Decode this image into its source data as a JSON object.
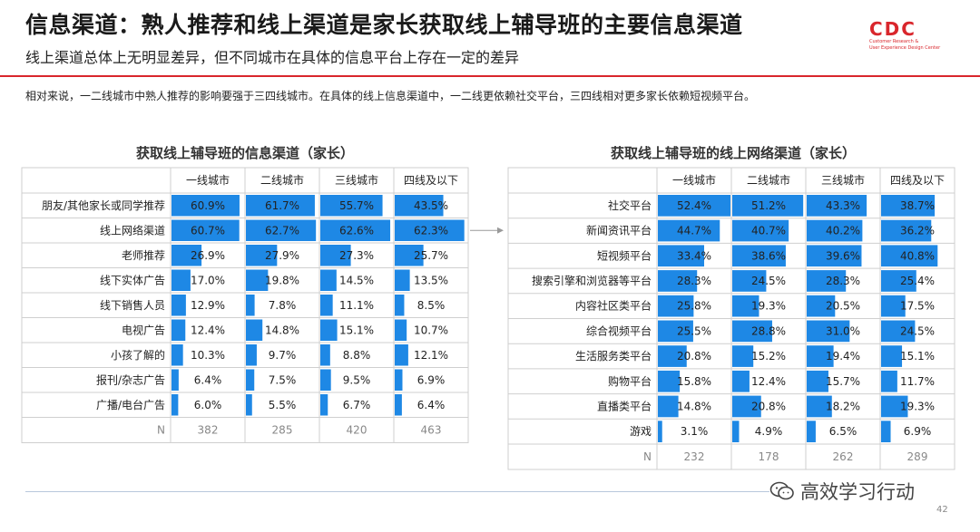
{
  "header": {
    "title": "信息渠道：熟人推荐和线上渠道是家长获取线上辅导班的主要信息渠道",
    "subtitle": "线上渠道总体上无明显差异，但不同城市在具体的信息平台上存在一定的差异",
    "description": "相对来说，一二线城市中熟人推荐的影响要强于三四线城市。在具体的线上信息渠道中，一二线更依赖社交平台，三四线相对更多家长依赖短视频平台。",
    "logo_text": "CDC",
    "logo_sub1": "Customer Research &",
    "logo_sub2": "User Experience Design Center"
  },
  "colors": {
    "bar": "#1e88e5",
    "grid": "#cfcfcf",
    "accent": "#d9262c"
  },
  "footer": {
    "watermark": "高效学习行动",
    "page_number": "42"
  },
  "chart_data": [
    {
      "type": "table",
      "title": "获取线上辅导班的信息渠道（家长）",
      "columns": [
        "一线城市",
        "二线城市",
        "三线城市",
        "四线及以下"
      ],
      "rows": [
        "朋友/其他家长或同学推荐",
        "线上网络渠道",
        "老师推荐",
        "线下实体广告",
        "线下销售人员",
        "电视广告",
        "小孩了解的",
        "报刊/杂志广告",
        "广播/电台广告"
      ],
      "values": [
        [
          60.9,
          61.7,
          55.7,
          43.5
        ],
        [
          60.7,
          62.7,
          62.6,
          62.3
        ],
        [
          26.9,
          27.9,
          27.3,
          25.7
        ],
        [
          17.0,
          19.8,
          14.5,
          13.5
        ],
        [
          12.9,
          7.8,
          11.1,
          8.5
        ],
        [
          12.4,
          14.8,
          15.1,
          10.7
        ],
        [
          10.3,
          9.7,
          8.8,
          12.1
        ],
        [
          6.4,
          7.5,
          9.5,
          6.9
        ],
        [
          6.0,
          5.5,
          6.7,
          6.4
        ]
      ],
      "labels": [
        [
          "60.9%",
          "61.7%",
          "55.7%",
          "43.5%"
        ],
        [
          "60.7%",
          "62.7%",
          "62.6%",
          "62.3%"
        ],
        [
          "26.9%",
          "27.9%",
          "27.3%",
          "25.7%"
        ],
        [
          "17.0%",
          "19.8%",
          "14.5%",
          "13.5%"
        ],
        [
          "12.9%",
          "7.8%",
          "11.1%",
          "8.5%"
        ],
        [
          "12.4%",
          "14.8%",
          "15.1%",
          "10.7%"
        ],
        [
          "10.3%",
          "9.7%",
          "8.8%",
          "12.1%"
        ],
        [
          "6.4%",
          "7.5%",
          "9.5%",
          "6.9%"
        ],
        [
          "6.0%",
          "5.5%",
          "6.7%",
          "6.4%"
        ]
      ],
      "n_label": "N",
      "n": [
        382,
        285,
        420,
        463
      ],
      "max": 65
    },
    {
      "type": "table",
      "title": "获取线上辅导班的线上网络渠道（家长）",
      "columns": [
        "一线城市",
        "二线城市",
        "三线城市",
        "四线及以下"
      ],
      "rows": [
        "社交平台",
        "新闻资讯平台",
        "短视频平台",
        "搜索引擎和浏览器等平台",
        "内容社区类平台",
        "综合视频平台",
        "生活服务类平台",
        "购物平台",
        "直播类平台",
        "游戏"
      ],
      "values": [
        [
          52.4,
          51.2,
          43.3,
          38.7
        ],
        [
          44.7,
          40.7,
          40.2,
          36.2
        ],
        [
          33.4,
          38.6,
          39.6,
          40.8
        ],
        [
          28.3,
          24.5,
          28.3,
          25.4
        ],
        [
          25.8,
          19.3,
          20.5,
          17.5
        ],
        [
          25.5,
          28.8,
          31.0,
          24.5
        ],
        [
          20.8,
          15.2,
          19.4,
          15.1
        ],
        [
          15.8,
          12.4,
          15.7,
          11.7
        ],
        [
          14.8,
          20.8,
          18.2,
          19.3
        ],
        [
          3.1,
          4.9,
          6.5,
          6.9
        ]
      ],
      "labels": [
        [
          "52.4%",
          "51.2%",
          "43.3%",
          "38.7%"
        ],
        [
          "44.7%",
          "40.7%",
          "40.2%",
          "36.2%"
        ],
        [
          "33.4%",
          "38.6%",
          "39.6%",
          "40.8%"
        ],
        [
          "28.3%",
          "24.5%",
          "28.3%",
          "25.4%"
        ],
        [
          "25.8%",
          "19.3%",
          "20.5%",
          "17.5%"
        ],
        [
          "25.5%",
          "28.8%",
          "31.0%",
          "24.5%"
        ],
        [
          "20.8%",
          "15.2%",
          "19.4%",
          "15.1%"
        ],
        [
          "15.8%",
          "12.4%",
          "15.7%",
          "11.7%"
        ],
        [
          "14.8%",
          "20.8%",
          "18.2%",
          "19.3%"
        ],
        [
          "3.1%",
          "4.9%",
          "6.5%",
          "6.9%"
        ]
      ],
      "n_label": "N",
      "n": [
        232,
        178,
        262,
        289
      ],
      "max": 52.4
    }
  ]
}
